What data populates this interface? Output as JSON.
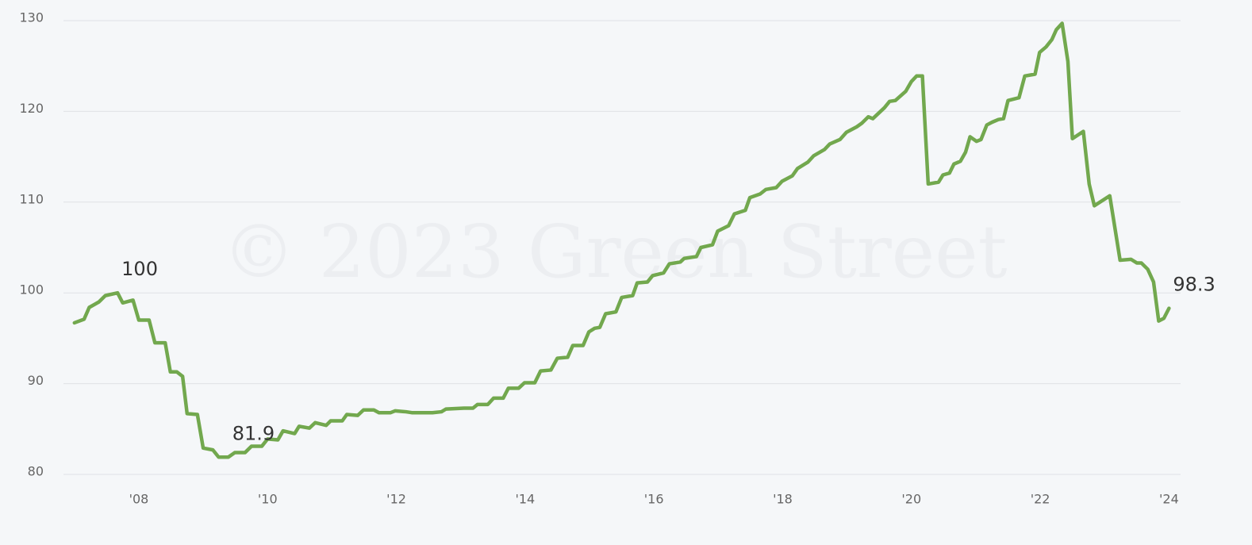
{
  "chart_data": {
    "type": "line",
    "watermark": "© 2023 Green Street",
    "series": [
      {
        "color": "#72a84e",
        "x": [
          2007.0,
          2007.15,
          2007.23,
          2007.38,
          2007.48,
          2007.67,
          2007.75,
          2007.91,
          2008.0,
          2008.16,
          2008.25,
          2008.41,
          2008.49,
          2008.59,
          2008.68,
          2008.75,
          2008.91,
          2009.0,
          2009.15,
          2009.24,
          2009.39,
          2009.49,
          2009.65,
          2009.75,
          2009.91,
          2010.0,
          2010.16,
          2010.24,
          2010.42,
          2010.49,
          2010.65,
          2010.74,
          2010.91,
          2010.98,
          2011.16,
          2011.23,
          2011.4,
          2011.49,
          2011.65,
          2011.73,
          2011.91,
          2011.98,
          2012.15,
          2012.24,
          2012.56,
          2012.7,
          2012.77,
          2013.05,
          2013.19,
          2013.26,
          2013.42,
          2013.51,
          2013.66,
          2013.74,
          2013.9,
          2013.99,
          2014.15,
          2014.24,
          2014.4,
          2014.5,
          2014.66,
          2014.74,
          2014.9,
          2014.99,
          2015.08,
          2015.16,
          2015.25,
          2015.41,
          2015.5,
          2015.67,
          2015.74,
          2015.9,
          2015.98,
          2016.15,
          2016.24,
          2016.41,
          2016.47,
          2016.66,
          2016.73,
          2016.91,
          2016.99,
          2017.16,
          2017.25,
          2017.42,
          2017.49,
          2017.65,
          2017.74,
          2017.9,
          2017.99,
          2018.15,
          2018.23,
          2018.39,
          2018.48,
          2018.65,
          2018.73,
          2018.89,
          2018.99,
          2019.15,
          2019.23,
          2019.33,
          2019.4,
          2019.58,
          2019.66,
          2019.75,
          2019.91,
          2020.0,
          2020.08,
          2020.17,
          2020.26,
          2020.42,
          2020.49,
          2020.59,
          2020.66,
          2020.76,
          2020.84,
          2020.91,
          2021.01,
          2021.08,
          2021.17,
          2021.25,
          2021.35,
          2021.43,
          2021.5,
          2021.67,
          2021.76,
          2021.92,
          2021.99,
          2022.09,
          2022.18,
          2022.25,
          2022.34,
          2022.43,
          2022.5,
          2022.67,
          2022.76,
          2022.84,
          2023.08,
          2023.24,
          2023.41,
          2023.5,
          2023.57,
          2023.67,
          2023.76,
          2023.84,
          2023.92,
          2024.0
        ],
        "values": [
          96.7,
          97.1,
          98.4,
          99.0,
          99.7,
          100.0,
          98.9,
          99.2,
          97.0,
          97.0,
          94.5,
          94.5,
          91.3,
          91.3,
          90.8,
          86.7,
          86.6,
          82.9,
          82.7,
          81.9,
          81.9,
          82.4,
          82.4,
          83.1,
          83.1,
          83.9,
          83.8,
          84.8,
          84.5,
          85.3,
          85.1,
          85.7,
          85.4,
          85.9,
          85.9,
          86.6,
          86.5,
          87.1,
          87.1,
          86.8,
          86.8,
          87.0,
          86.9,
          86.8,
          86.8,
          86.9,
          87.2,
          87.3,
          87.3,
          87.7,
          87.7,
          88.4,
          88.4,
          89.5,
          89.5,
          90.1,
          90.1,
          91.4,
          91.5,
          92.8,
          92.9,
          94.2,
          94.2,
          95.7,
          96.1,
          96.2,
          97.7,
          97.9,
          99.5,
          99.7,
          101.1,
          101.2,
          101.9,
          102.2,
          103.2,
          103.4,
          103.8,
          104.0,
          105.0,
          105.3,
          106.8,
          107.4,
          108.7,
          109.1,
          110.5,
          110.9,
          111.4,
          111.6,
          112.3,
          112.9,
          113.7,
          114.4,
          115.1,
          115.8,
          116.4,
          116.9,
          117.7,
          118.3,
          118.7,
          119.4,
          119.2,
          120.4,
          121.1,
          121.2,
          122.2,
          123.3,
          123.9,
          123.9,
          112.0,
          112.2,
          113.0,
          113.2,
          114.2,
          114.5,
          115.5,
          117.2,
          116.7,
          116.9,
          118.5,
          118.8,
          119.1,
          119.2,
          121.2,
          121.5,
          123.9,
          124.1,
          126.5,
          127.1,
          127.9,
          129.0,
          129.7,
          125.5,
          117.0,
          117.8,
          112.0,
          109.6,
          110.7,
          103.6,
          103.7,
          103.3,
          103.3,
          102.6,
          101.2,
          96.9,
          97.2,
          98.3
        ],
        "value_labels": [
          null,
          null,
          null,
          null,
          null,
          "100",
          null,
          null,
          null,
          null,
          null,
          null,
          null,
          null,
          null,
          null,
          null,
          null,
          null,
          null,
          "81.9",
          null,
          null,
          null,
          null,
          null,
          null,
          null,
          null,
          null,
          null,
          null,
          null,
          null,
          null,
          null,
          null,
          null,
          null,
          null,
          null,
          null,
          null,
          null,
          null,
          null,
          null,
          null,
          null,
          null,
          null,
          null,
          null,
          null,
          null,
          null,
          null,
          null,
          null,
          null,
          null,
          null,
          null,
          null,
          null,
          null,
          null,
          null,
          null,
          null,
          null,
          null,
          null,
          null,
          null,
          null,
          null,
          null,
          null,
          null,
          null,
          null,
          null,
          null,
          null,
          null,
          null,
          null,
          null,
          null,
          null,
          null,
          null,
          null,
          null,
          null,
          null,
          null,
          null,
          null,
          null,
          null,
          null,
          null,
          null,
          null,
          null,
          null,
          null,
          null,
          null,
          null,
          null,
          null,
          null,
          null,
          null,
          null,
          null,
          null,
          null,
          null,
          null,
          null,
          null,
          null,
          null,
          null,
          null,
          null,
          null,
          null,
          null,
          null,
          null,
          null,
          null,
          null,
          null,
          null,
          null,
          null,
          null,
          null,
          null,
          "98.3"
        ]
      }
    ],
    "xlim": [
      2006.83,
      2024.18
    ],
    "xticks": [
      {
        "value": 2008,
        "label": "'08"
      },
      {
        "value": 2010,
        "label": "'10"
      },
      {
        "value": 2012,
        "label": "'12"
      },
      {
        "value": 2014,
        "label": "'14"
      },
      {
        "value": 2016,
        "label": "'16"
      },
      {
        "value": 2018,
        "label": "'18"
      },
      {
        "value": 2020,
        "label": "'20"
      },
      {
        "value": 2022,
        "label": "'22"
      },
      {
        "value": 2024,
        "label": "'24"
      }
    ],
    "ylim": [
      80,
      130
    ],
    "yticks": [
      80,
      90,
      100,
      110,
      120,
      130
    ],
    "grid": true
  }
}
